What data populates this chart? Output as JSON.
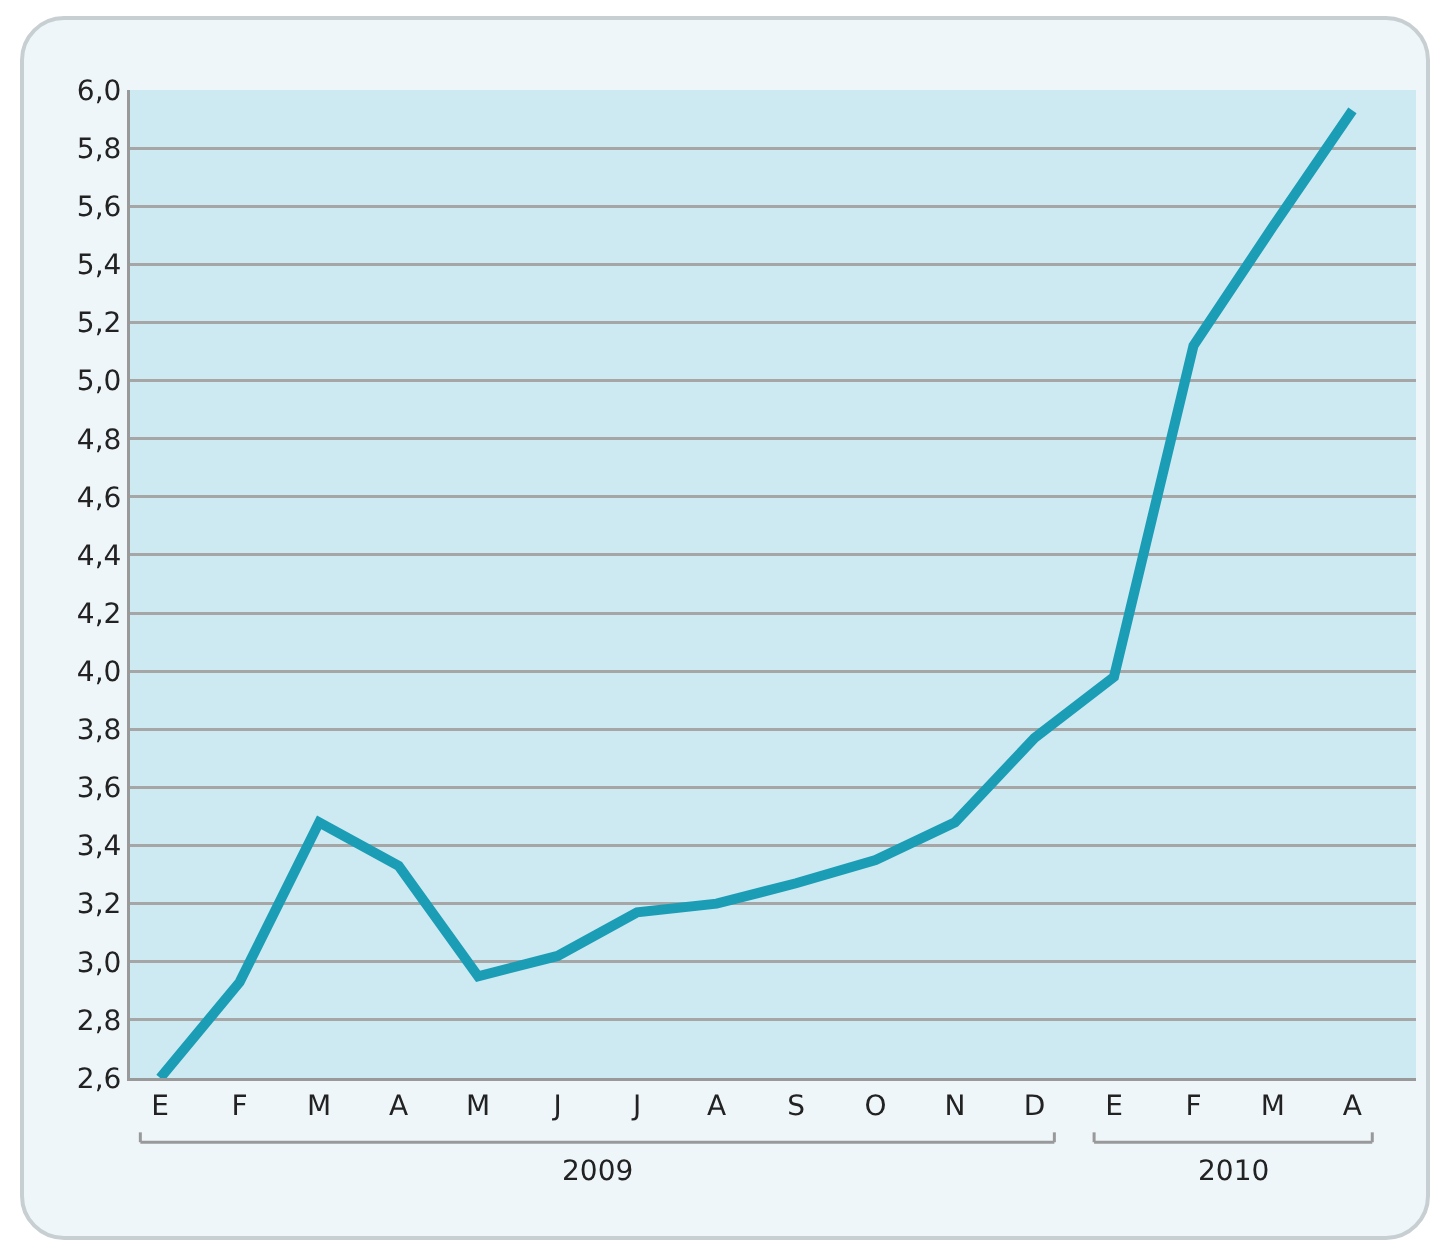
{
  "chart_data": {
    "type": "line",
    "categories": [
      "E",
      "F",
      "M",
      "A",
      "M",
      "J",
      "J",
      "A",
      "S",
      "O",
      "N",
      "D",
      "E",
      "F",
      "M",
      "A"
    ],
    "series": [
      {
        "color": "#1a9db5",
        "values": [
          2.6,
          2.93,
          3.48,
          3.33,
          2.95,
          3.02,
          3.17,
          3.2,
          3.27,
          3.35,
          3.48,
          3.77,
          3.98,
          5.12,
          5.53,
          5.93
        ]
      }
    ],
    "ylim": [
      2.6,
      6.0
    ],
    "yticks": [
      {
        "value": 2.6,
        "label": "2,6"
      },
      {
        "value": 2.8,
        "label": "2,8"
      },
      {
        "value": 3.0,
        "label": "3,0"
      },
      {
        "value": 3.2,
        "label": "3,2"
      },
      {
        "value": 3.4,
        "label": "3,4"
      },
      {
        "value": 3.6,
        "label": "3,6"
      },
      {
        "value": 3.8,
        "label": "3,8"
      },
      {
        "value": 4.0,
        "label": "4,0"
      },
      {
        "value": 4.2,
        "label": "4,2"
      },
      {
        "value": 4.4,
        "label": "4,4"
      },
      {
        "value": 4.6,
        "label": "4,6"
      },
      {
        "value": 4.8,
        "label": "4,8"
      },
      {
        "value": 5.0,
        "label": "5,0"
      },
      {
        "value": 5.2,
        "label": "5,2"
      },
      {
        "value": 5.4,
        "label": "5,4"
      },
      {
        "value": 5.6,
        "label": "5,6"
      },
      {
        "value": 5.8,
        "label": "5,8"
      },
      {
        "value": 6.0,
        "label": "6,0"
      }
    ],
    "grid": "y",
    "marker": "none",
    "line_style": "solid",
    "annotations": [
      "2009",
      "2010"
    ]
  }
}
